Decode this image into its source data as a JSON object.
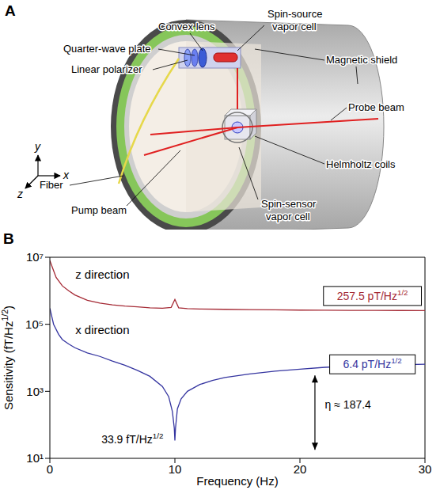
{
  "diagram": {
    "panel": "A",
    "labels": {
      "convex_lens": "Convex lens",
      "spin_source_vapor_cell": "Spin-source vapor cell",
      "quarter_wave_plate": "Quarter-wave plate",
      "linear_polarizer": "Linear polarizer",
      "magnetic_shield": "Magnetic shield",
      "probe_beam": "Probe beam",
      "fiber": "Fiber",
      "helmholtz_coils": "Helmholtz coils",
      "pump_beam": "Pump beam",
      "spin_sensor_vapor_cell": "Spin-sensor vapor cell"
    },
    "axes": {
      "x": "x",
      "y": "y",
      "z": "z"
    }
  },
  "chart_data": {
    "type": "line",
    "panel": "B",
    "x_label": "Frequency (Hz)",
    "y_label": "Sensitivity (fT/Hz1/2)",
    "xlim": [
      0,
      30
    ],
    "xticks": [
      0,
      10,
      20,
      30
    ],
    "ylim": [
      10,
      10000000
    ],
    "yticks": [
      {
        "value": 10,
        "label": "10¹"
      },
      {
        "value": 1000,
        "label": "10³"
      },
      {
        "value": 100000,
        "label": "10⁵"
      },
      {
        "value": 10000000,
        "label": "10⁷"
      }
    ],
    "log": "y",
    "grid": false,
    "series": [
      {
        "name": "z direction",
        "color": "#a52a35",
        "x": [
          0,
          0.2,
          0.5,
          1,
          1.5,
          2,
          3,
          4,
          5,
          6,
          7,
          8,
          9,
          9.7,
          10,
          10.3,
          11,
          12,
          14,
          16,
          18,
          20,
          22,
          24,
          26,
          28,
          30
        ],
        "values": [
          8000000,
          5000000,
          2500000,
          1400000,
          1000000,
          750000,
          520000,
          430000,
          380000,
          350000,
          330000,
          310000,
          300000,
          320000,
          550000,
          310000,
          295000,
          285000,
          280000,
          275000,
          270000,
          265000,
          262000,
          260000,
          259000,
          258000,
          257500
        ]
      },
      {
        "name": "x direction",
        "color": "#3535a0",
        "x": [
          0,
          0.3,
          0.7,
          1,
          1.5,
          2,
          3,
          4,
          5,
          6,
          7,
          8,
          9,
          9.5,
          9.8,
          9.95,
          10,
          10.05,
          10.2,
          10.5,
          11,
          12,
          13,
          14,
          16,
          18,
          20,
          22,
          24,
          26,
          28,
          30
        ],
        "values": [
          300000,
          100000,
          50000,
          35000,
          26000,
          20000,
          14000,
          11000,
          8000,
          6000,
          4200,
          2800,
          1400,
          700,
          250,
          80,
          33.9,
          80,
          300,
          600,
          1000,
          1600,
          2100,
          2600,
          3300,
          4000,
          4600,
          5200,
          5600,
          6000,
          6200,
          6400
        ]
      }
    ],
    "annotations": [
      {
        "text": "257.5 pT/Hz1/2"
      },
      {
        "text": "6.4 pT/Hz1/2"
      },
      {
        "text": "33.9 fT/Hz1/2"
      },
      {
        "text": "η ≈ 187.4"
      }
    ]
  }
}
